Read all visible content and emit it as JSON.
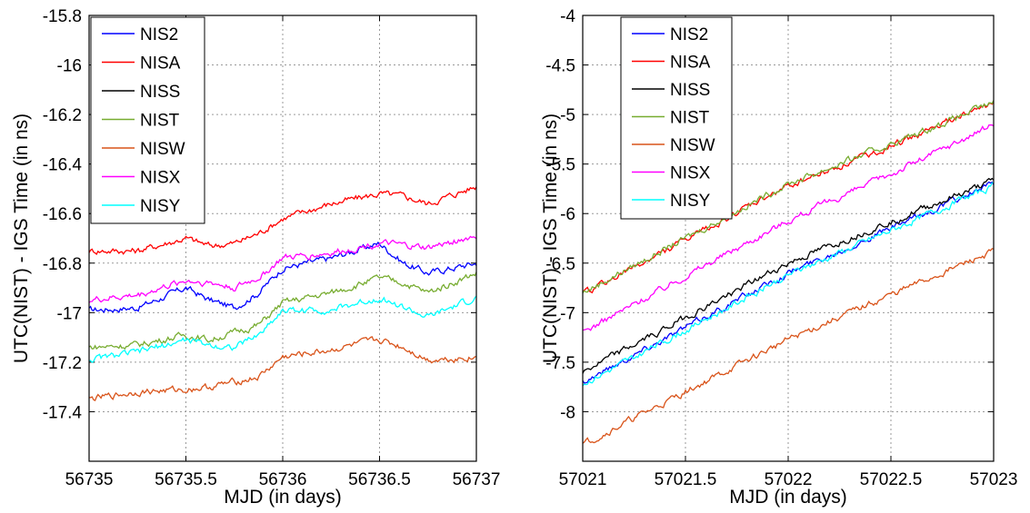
{
  "colors": {
    "NIS2": "#0000ff",
    "NISA": "#ff0000",
    "NISS": "#000000",
    "NIST": "#77ac30",
    "NISW": "#d95319",
    "NISX": "#ff00ff",
    "NISY": "#00ffff"
  },
  "chart_data": [
    {
      "type": "line",
      "title": "",
      "xlabel": "MJD (in days)",
      "ylabel": "UTC(NIST) - IGS Time (in ns)",
      "xlim": [
        56735,
        56737
      ],
      "ylim": [
        -17.6,
        -15.8
      ],
      "xticks": [
        56735,
        56735.5,
        56736,
        56736.5,
        56737
      ],
      "xtick_labels": [
        "56735",
        "56735.5",
        "56736",
        "56736.5",
        "56737"
      ],
      "yticks": [
        -15.8,
        -16,
        -16.2,
        -16.4,
        -16.6,
        -16.8,
        -17,
        -17.2,
        -17.4
      ],
      "ytick_labels": [
        "-15.8",
        "-16",
        "-16.2",
        "-16.4",
        "-16.6",
        "-16.8",
        "-17",
        "-17.2",
        "-17.4"
      ],
      "grid": true,
      "legend_position": "top-left",
      "series": [
        {
          "name": "NIS2",
          "color_key": "NIS2",
          "x": [
            56735,
            56735.25,
            56735.5,
            56735.625,
            56735.75,
            56735.875,
            56736,
            56736.25,
            56736.5,
            56736.625,
            56736.75,
            56737
          ],
          "y": [
            -16.99,
            -16.98,
            -16.9,
            -16.95,
            -16.98,
            -16.92,
            -16.82,
            -16.78,
            -16.72,
            -16.8,
            -16.84,
            -16.8
          ]
        },
        {
          "name": "NISA",
          "color_key": "NISA",
          "x": [
            56735,
            56735.25,
            56735.5,
            56735.625,
            56735.75,
            56735.875,
            56736,
            56736.25,
            56736.5,
            56736.625,
            56736.75,
            56737
          ],
          "y": [
            -16.75,
            -16.75,
            -16.7,
            -16.73,
            -16.72,
            -16.68,
            -16.62,
            -16.56,
            -16.52,
            -16.53,
            -16.56,
            -16.49
          ]
        },
        {
          "name": "NISS",
          "color_key": "NISS",
          "x": [],
          "y": []
        },
        {
          "name": "NIST",
          "color_key": "NIST",
          "x": [
            56735,
            56735.25,
            56735.5,
            56735.625,
            56735.75,
            56735.875,
            56736,
            56736.25,
            56736.5,
            56736.625,
            56736.75,
            56737
          ],
          "y": [
            -17.14,
            -17.13,
            -17.09,
            -17.11,
            -17.08,
            -17.05,
            -16.96,
            -16.92,
            -16.86,
            -16.88,
            -16.92,
            -16.84
          ]
        },
        {
          "name": "NISW",
          "color_key": "NISW",
          "x": [
            56735,
            56735.25,
            56735.5,
            56735.625,
            56735.75,
            56735.875,
            56736,
            56736.25,
            56736.5,
            56736.625,
            56736.75,
            56737
          ],
          "y": [
            -17.35,
            -17.32,
            -17.31,
            -17.3,
            -17.28,
            -17.26,
            -17.18,
            -17.15,
            -17.11,
            -17.14,
            -17.19,
            -17.18
          ]
        },
        {
          "name": "NISX",
          "color_key": "NISX",
          "x": [
            56735,
            56735.25,
            56735.5,
            56735.625,
            56735.75,
            56735.875,
            56736,
            56736.25,
            56736.5,
            56736.625,
            56736.75,
            56737
          ],
          "y": [
            -16.95,
            -16.93,
            -16.87,
            -16.88,
            -16.9,
            -16.86,
            -16.78,
            -16.76,
            -16.72,
            -16.73,
            -16.74,
            -16.69
          ]
        },
        {
          "name": "NISY",
          "color_key": "NISY",
          "x": [
            56735,
            56735.25,
            56735.5,
            56735.625,
            56735.75,
            56735.875,
            56736,
            56736.25,
            56736.5,
            56736.625,
            56736.75,
            56737
          ],
          "y": [
            -17.19,
            -17.16,
            -17.11,
            -17.13,
            -17.14,
            -17.09,
            -16.99,
            -16.99,
            -16.94,
            -16.98,
            -17.02,
            -16.94
          ]
        }
      ]
    },
    {
      "type": "line",
      "title": "",
      "xlabel": "MJD (in days)",
      "ylabel": "UTC(NIST) - IGS Time (in ns)",
      "xlim": [
        57021,
        57023
      ],
      "ylim": [
        -8.5,
        -4
      ],
      "xticks": [
        57021,
        57021.5,
        57022,
        57022.5,
        57023
      ],
      "xtick_labels": [
        "57021",
        "57021.5",
        "57022",
        "57022.5",
        "57023"
      ],
      "yticks": [
        -4,
        -4.5,
        -5,
        -5.5,
        -6,
        -6.5,
        -7,
        -7.5,
        -8
      ],
      "ytick_labels": [
        "-4",
        "-4.5",
        "-5",
        "-5.5",
        "-6",
        "-6.5",
        "-7",
        "-7.5",
        "-8"
      ],
      "grid": true,
      "legend_position": "top-left",
      "series": [
        {
          "name": "NIS2",
          "color_key": "NIS2",
          "x": [
            57021,
            57021.5,
            57022,
            57022.5,
            57023
          ],
          "y": [
            -7.7,
            -7.15,
            -6.6,
            -6.15,
            -5.7
          ]
        },
        {
          "name": "NISA",
          "color_key": "NISA",
          "x": [
            57021,
            57021.5,
            57022,
            57022.5,
            57023
          ],
          "y": [
            -6.82,
            -6.27,
            -5.72,
            -5.32,
            -4.88
          ]
        },
        {
          "name": "NISS",
          "color_key": "NISS",
          "x": [
            57021,
            57021.5,
            57022,
            57022.5,
            57023
          ],
          "y": [
            -7.6,
            -7.05,
            -6.5,
            -6.08,
            -5.67
          ]
        },
        {
          "name": "NIST",
          "color_key": "NIST",
          "x": [
            57021,
            57021.5,
            57022,
            57022.5,
            57023
          ],
          "y": [
            -6.8,
            -6.25,
            -5.7,
            -5.3,
            -4.88
          ]
        },
        {
          "name": "NISW",
          "color_key": "NISW",
          "x": [
            57021,
            57021.5,
            57022,
            57022.5,
            57023
          ],
          "y": [
            -8.33,
            -7.8,
            -7.27,
            -6.82,
            -6.38
          ]
        },
        {
          "name": "NISX",
          "color_key": "NISX",
          "x": [
            57021,
            57021.5,
            57022,
            57022.5,
            57023
          ],
          "y": [
            -7.2,
            -6.63,
            -6.07,
            -5.6,
            -5.1
          ]
        },
        {
          "name": "NISY",
          "color_key": "NISY",
          "x": [
            57021,
            57021.5,
            57022,
            57022.5,
            57023
          ],
          "y": [
            -7.72,
            -7.18,
            -6.62,
            -6.17,
            -5.72
          ]
        }
      ]
    }
  ]
}
